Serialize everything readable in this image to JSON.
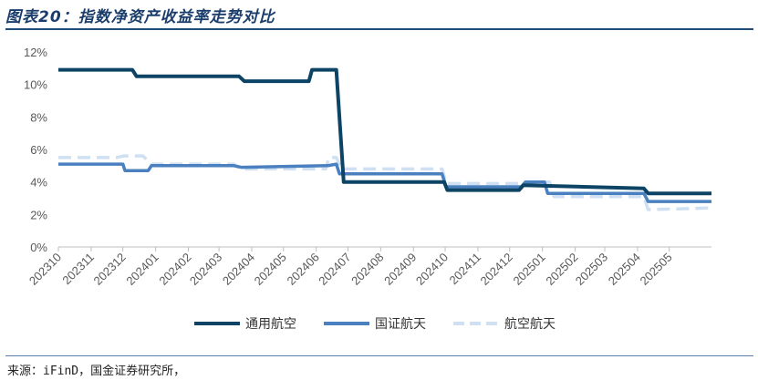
{
  "title": "图表20：指数净资产收益率走势对比",
  "source": "来源：iFinD，国金证券研究所，",
  "chart_data": {
    "type": "line",
    "x_label_format": "YYYYMM",
    "x_start": "2023-10-01",
    "x_end": "2025-06-10",
    "x_ticks": [
      "202310",
      "202311",
      "202312",
      "202401",
      "202402",
      "202403",
      "202404",
      "202405",
      "202406",
      "202407",
      "202408",
      "202409",
      "202410",
      "202411",
      "202412",
      "202501",
      "202502",
      "202503",
      "202504",
      "202505"
    ],
    "y_ticks": [
      "0%",
      "2%",
      "4%",
      "6%",
      "8%",
      "10%",
      "12%"
    ],
    "ylim": [
      0,
      12
    ],
    "ylabel": "",
    "xlabel": "",
    "grid": false,
    "legend_position": "bottom",
    "series": [
      {
        "name": "通用航空",
        "color": "#0d4466",
        "dash": "",
        "points": [
          [
            "2023-10-01",
            10.9
          ],
          [
            "2023-12-10",
            10.9
          ],
          [
            "2023-12-14",
            10.5
          ],
          [
            "2024-03-20",
            10.5
          ],
          [
            "2024-03-25",
            10.2
          ],
          [
            "2024-05-25",
            10.2
          ],
          [
            "2024-05-28",
            10.9
          ],
          [
            "2024-06-20",
            10.9
          ],
          [
            "2024-06-27",
            4.0
          ],
          [
            "2024-09-30",
            4.0
          ],
          [
            "2024-10-03",
            3.5
          ],
          [
            "2024-12-10",
            3.5
          ],
          [
            "2024-12-14",
            3.8
          ],
          [
            "2025-04-07",
            3.6
          ],
          [
            "2025-04-11",
            3.3
          ],
          [
            "2025-06-10",
            3.3
          ]
        ]
      },
      {
        "name": "国证航天",
        "color": "#4a80bf",
        "dash": "",
        "points": [
          [
            "2023-10-01",
            5.1
          ],
          [
            "2023-12-01",
            5.1
          ],
          [
            "2023-12-03",
            4.7
          ],
          [
            "2023-12-25",
            4.7
          ],
          [
            "2023-12-28",
            5.0
          ],
          [
            "2024-03-15",
            5.0
          ],
          [
            "2024-03-22",
            4.9
          ],
          [
            "2024-06-12",
            5.0
          ],
          [
            "2024-06-20",
            5.1
          ],
          [
            "2024-06-23",
            4.5
          ],
          [
            "2024-09-28",
            4.5
          ],
          [
            "2024-10-02",
            3.7
          ],
          [
            "2024-12-12",
            3.7
          ],
          [
            "2024-12-16",
            4.0
          ],
          [
            "2025-01-03",
            4.0
          ],
          [
            "2025-01-06",
            3.3
          ],
          [
            "2025-04-07",
            3.3
          ],
          [
            "2025-04-11",
            2.8
          ],
          [
            "2025-06-10",
            2.8
          ]
        ]
      },
      {
        "name": "航空航天",
        "color": "#cfe0f2",
        "dash": "14 7",
        "points": [
          [
            "2023-10-01",
            5.5
          ],
          [
            "2023-11-25",
            5.5
          ],
          [
            "2023-12-02",
            5.6
          ],
          [
            "2023-12-20",
            5.6
          ],
          [
            "2023-12-28",
            5.1
          ],
          [
            "2024-03-15",
            5.1
          ],
          [
            "2024-03-22",
            4.8
          ],
          [
            "2024-06-10",
            4.8
          ],
          [
            "2024-06-13",
            5.5
          ],
          [
            "2024-06-20",
            5.5
          ],
          [
            "2024-06-25",
            4.8
          ],
          [
            "2024-09-28",
            4.8
          ],
          [
            "2024-10-02",
            3.9
          ],
          [
            "2024-12-10",
            3.9
          ],
          [
            "2024-12-14",
            4.0
          ],
          [
            "2025-01-08",
            4.0
          ],
          [
            "2025-01-12",
            3.1
          ],
          [
            "2025-04-07",
            3.1
          ],
          [
            "2025-04-11",
            2.3
          ],
          [
            "2025-06-10",
            2.4
          ]
        ]
      }
    ]
  }
}
